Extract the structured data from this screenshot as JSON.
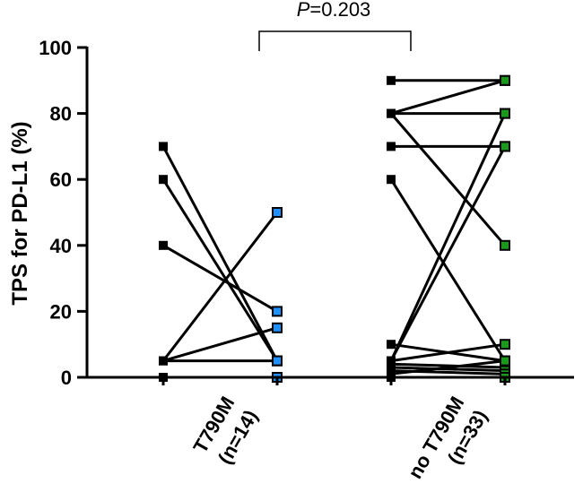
{
  "chart_data": {
    "type": "paired-scatter",
    "title": "",
    "ylabel": "TPS for PD-L1 (%)",
    "xlabel": "",
    "ylim": [
      0,
      100
    ],
    "yticks": [
      0,
      20,
      40,
      60,
      80,
      100
    ],
    "annotation": {
      "p_italic": "P",
      "p_rest": "=0.203"
    },
    "groups": [
      {
        "name_line1": "T790M",
        "name_line2": "(n=14)",
        "post_color": "#1e90ff",
        "pairs": [
          [
            70,
            5
          ],
          [
            60,
            5
          ],
          [
            40,
            20
          ],
          [
            5,
            50
          ],
          [
            5,
            15
          ],
          [
            5,
            5
          ],
          [
            0,
            0
          ]
        ]
      },
      {
        "name_line1": "no T790M",
        "name_line2": "(n=33)",
        "post_color": "#1a9a1a",
        "pairs": [
          [
            90,
            90
          ],
          [
            80,
            90
          ],
          [
            80,
            80
          ],
          [
            80,
            40
          ],
          [
            70,
            70
          ],
          [
            60,
            5
          ],
          [
            10,
            5
          ],
          [
            5,
            80
          ],
          [
            5,
            70
          ],
          [
            5,
            10
          ],
          [
            4,
            3
          ],
          [
            3,
            2
          ],
          [
            2,
            1
          ],
          [
            1,
            5
          ],
          [
            0,
            0
          ]
        ]
      }
    ]
  }
}
